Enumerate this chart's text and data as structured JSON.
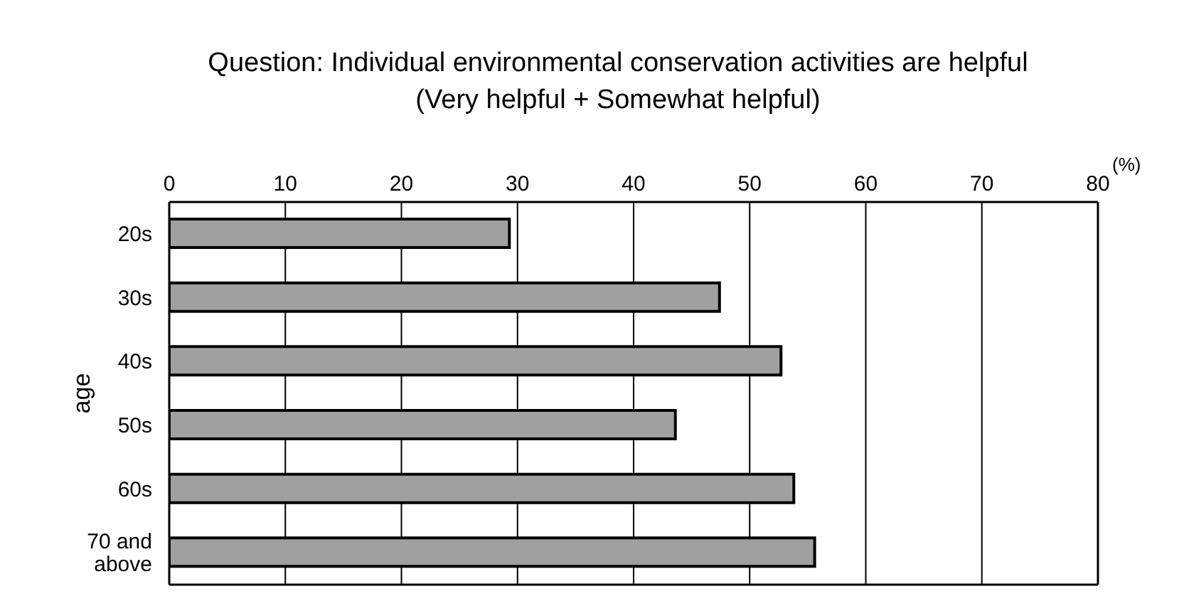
{
  "chart_data": {
    "type": "bar",
    "orientation": "horizontal",
    "title": "Question: Individual environmental conservation activities are helpful",
    "subtitle": "(Very helpful + Somewhat helpful)",
    "xlabel": "(%)",
    "ylabel": "age",
    "categories": [
      "20s",
      "30s",
      "40s",
      "50s",
      "60s",
      "70 and above"
    ],
    "values": [
      29.3,
      47.4,
      52.7,
      43.6,
      53.8,
      55.6
    ],
    "color": "#a0a0a0",
    "xlim": [
      0,
      80
    ],
    "xticks": [
      0,
      10,
      20,
      30,
      40,
      50,
      60,
      70,
      80
    ],
    "grid": "x"
  }
}
